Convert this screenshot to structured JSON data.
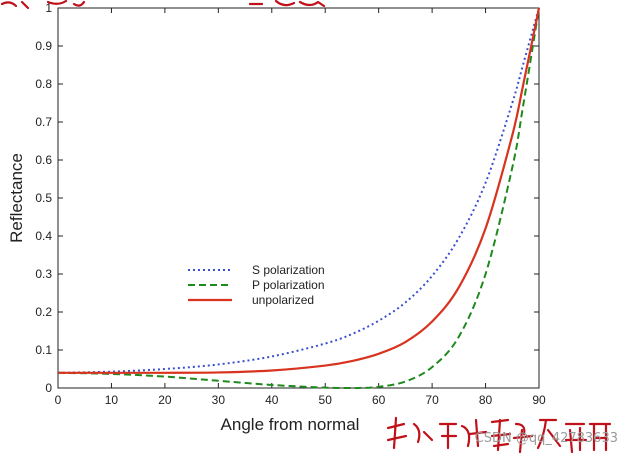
{
  "chart_data": {
    "type": "line",
    "xlabel": "Angle from normal",
    "ylabel": "Reflectance",
    "xlim": [
      0,
      90
    ],
    "ylim": [
      0,
      1
    ],
    "xticks": [
      "0",
      "10",
      "20",
      "30",
      "40",
      "50",
      "60",
      "70",
      "80",
      "90"
    ],
    "yticks": [
      "0",
      "0.1",
      "0.2",
      "0.3",
      "0.4",
      "0.5",
      "0.6",
      "0.7",
      "0.8",
      "0.9",
      "1"
    ],
    "grid": false,
    "legend_position": "lower-left-center",
    "series": [
      {
        "name": "S polarization",
        "style": "dotted",
        "color": "#3a4fcf",
        "x": [
          0,
          10,
          20,
          30,
          40,
          50,
          55,
          60,
          65,
          70,
          75,
          80,
          85,
          87,
          90
        ],
        "y": [
          0.04,
          0.043,
          0.05,
          0.062,
          0.083,
          0.117,
          0.142,
          0.177,
          0.225,
          0.295,
          0.395,
          0.54,
          0.75,
          0.85,
          1.0
        ]
      },
      {
        "name": "P polarization",
        "style": "dashed",
        "color": "#1e8a1e",
        "x": [
          0,
          10,
          20,
          30,
          40,
          50,
          55,
          56.3,
          60,
          65,
          70,
          75,
          80,
          85,
          87,
          90
        ],
        "y": [
          0.04,
          0.037,
          0.03,
          0.019,
          0.008,
          0.001,
          0.0001,
          0.0,
          0.003,
          0.017,
          0.055,
          0.135,
          0.3,
          0.58,
          0.74,
          1.0
        ]
      },
      {
        "name": "unpolarized",
        "style": "solid",
        "color": "#d8331e",
        "x": [
          0,
          10,
          20,
          30,
          40,
          50,
          55,
          60,
          65,
          70,
          75,
          80,
          85,
          87,
          90
        ],
        "y": [
          0.04,
          0.04,
          0.04,
          0.041,
          0.046,
          0.059,
          0.071,
          0.09,
          0.121,
          0.175,
          0.265,
          0.42,
          0.665,
          0.795,
          1.0
        ]
      }
    ]
  },
  "watermark": "CSDN @qq_42783633",
  "handwriting_color": "#c0101a"
}
